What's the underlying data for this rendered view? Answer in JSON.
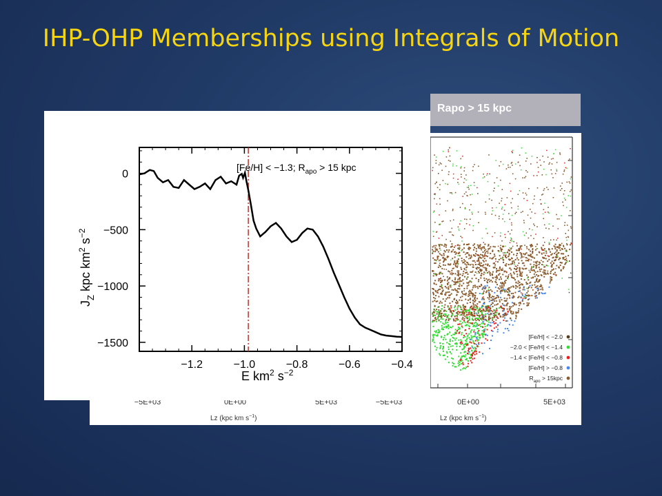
{
  "slide": {
    "title": "IHP-OHP Memberships using Integrals of Motion",
    "rapo_label": "Rapo > 15 kpc"
  },
  "colors": {
    "background": "#1f3863",
    "title": "#f5d411",
    "rapo_box": "#b2b0b8",
    "curve": "#000000",
    "marker": "#c0302a"
  },
  "chart_data": [
    {
      "type": "line",
      "title": "",
      "annotation": {
        "text_pre": "[Fe/H] < −1.3; R",
        "text_sub": "apo",
        "text_post": " > 15 kpc"
      },
      "xlabel": {
        "main": "E  km",
        "sup1": "2",
        "mid": " s",
        "sup2": "−2"
      },
      "ylabel": {
        "main": "J",
        "sub": "Z",
        "rest": "  kpc  km",
        "sup1": "2",
        "mid": " s",
        "sup2": "−2"
      },
      "xlim": [
        -1.4,
        -0.4
      ],
      "ylim": [
        -1580,
        230
      ],
      "xticks": [
        -1.2,
        -1.0,
        -0.8,
        -0.6,
        -0.4
      ],
      "xtick_labels": [
        "−1.2",
        "−1.0",
        "−0.8",
        "−0.6",
        "−0.4"
      ],
      "yticks": [
        0,
        -500,
        -1000,
        -1500
      ],
      "ytick_labels": [
        "0",
        "−500",
        "−1000",
        "−1500"
      ],
      "vline_x": -0.985,
      "series": [
        {
          "x": [
            -1.4,
            -1.38,
            -1.36,
            -1.345,
            -1.33,
            -1.31,
            -1.29,
            -1.27,
            -1.25,
            -1.23,
            -1.21,
            -1.19,
            -1.17,
            -1.15,
            -1.13,
            -1.11,
            -1.09,
            -1.07,
            -1.05,
            -1.03,
            -1.02,
            -1.01,
            -1.005,
            -0.998,
            -0.992,
            -0.985,
            -0.975,
            -0.965,
            -0.955,
            -0.94,
            -0.92,
            -0.9,
            -0.88,
            -0.86,
            -0.84,
            -0.82,
            -0.8,
            -0.78,
            -0.76,
            -0.74,
            -0.72,
            -0.7,
            -0.68,
            -0.66,
            -0.64,
            -0.62,
            -0.6,
            -0.58,
            -0.56,
            -0.54,
            -0.52,
            -0.5,
            -0.48,
            -0.46,
            -0.44,
            -0.42,
            -0.4
          ],
          "y": [
            -10,
            0,
            30,
            20,
            -40,
            -80,
            -60,
            -120,
            -130,
            -60,
            -100,
            -140,
            -120,
            -90,
            -140,
            -60,
            -30,
            -90,
            -70,
            -100,
            -20,
            -5,
            -40,
            5,
            -70,
            -150,
            -280,
            -420,
            -490,
            -560,
            -520,
            -470,
            -440,
            -490,
            -560,
            -610,
            -590,
            -530,
            -490,
            -500,
            -560,
            -650,
            -760,
            -880,
            -990,
            -1100,
            -1200,
            -1280,
            -1340,
            -1370,
            -1390,
            -1410,
            -1430,
            -1440,
            -1445,
            -1450,
            -1452
          ]
        }
      ]
    },
    {
      "type": "scatter",
      "xlabel": {
        "main": "Lz (kpc km s",
        "sup": "−1",
        "end": ")"
      },
      "xtick_labels": [
        "−5E+03",
        "0E+00",
        "5E+03",
        "−5E+03",
        "0E+00",
        "5E+03"
      ],
      "legend": {
        "position": "bottom-right",
        "items": [
          {
            "pre": "[Fe/H] < −2.0",
            "sub": "",
            "post": "",
            "color": "#5a3d1e"
          },
          {
            "pre": "−2.0 < [Fe/H] < −1.4",
            "sub": "",
            "post": "",
            "color": "#33dd33"
          },
          {
            "pre": "−1.4 < [Fe/H] < −0.8",
            "sub": "",
            "post": "",
            "color": "#ee1c1c"
          },
          {
            "pre": "[Fe/H] > −0.8",
            "sub": "",
            "post": "",
            "color": "#4488ee"
          },
          {
            "pre": "R",
            "sub": "apo",
            "post": " > 15kpc",
            "color": "#8b5a2b"
          }
        ]
      }
    }
  ]
}
